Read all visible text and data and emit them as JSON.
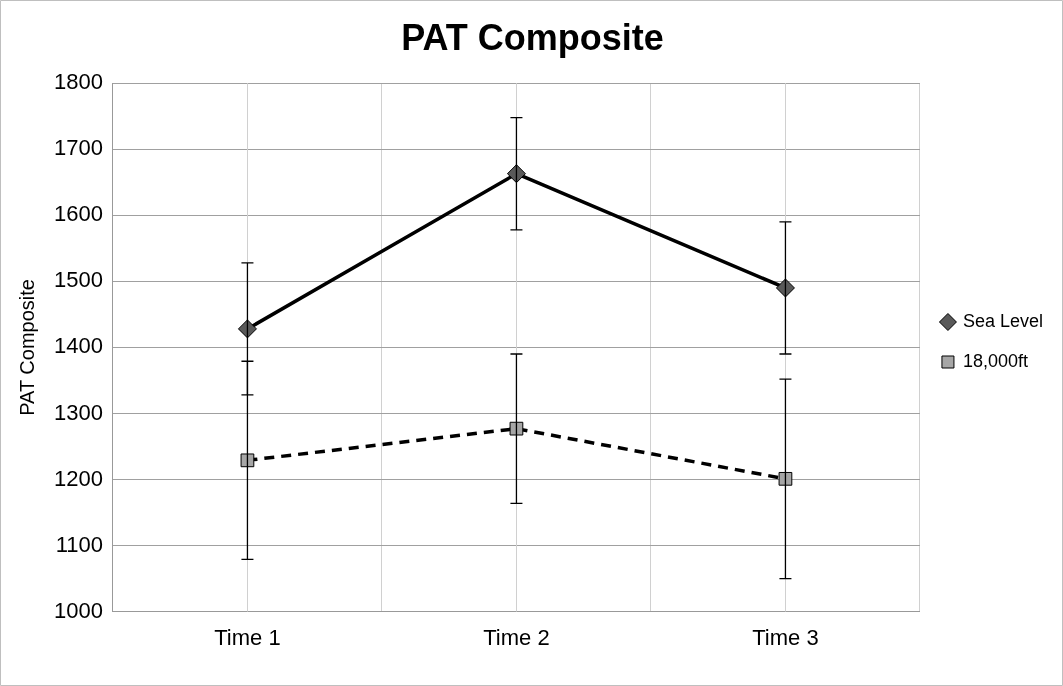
{
  "chart_data": {
    "type": "line",
    "title": "PAT Composite",
    "ylabel": "PAT Composite",
    "categories": [
      "Time 1",
      "Time 2",
      "Time 3"
    ],
    "series": [
      {
        "name": "Sea Level",
        "color": "#000000",
        "colors": [
          "#595959",
          "#595959",
          "#595959"
        ],
        "marker": "diamond",
        "line_style": "solid",
        "values": [
          1428,
          1663,
          1490
        ],
        "errors": [
          100,
          85,
          100
        ]
      },
      {
        "name": "18,000ft",
        "color": "#000000",
        "colors": [
          "#a6a6a6",
          "#a6a6a6",
          "#a6a6a6"
        ],
        "marker": "square",
        "line_style": "dashed",
        "values": [
          1229,
          1277,
          1201
        ],
        "errors": [
          150,
          113,
          151
        ]
      }
    ],
    "ylim": [
      1000,
      1800
    ],
    "yticks": [
      1000,
      1100,
      1200,
      1300,
      1400,
      1500,
      1600,
      1700,
      1800
    ],
    "grid": true,
    "legend": "right"
  }
}
